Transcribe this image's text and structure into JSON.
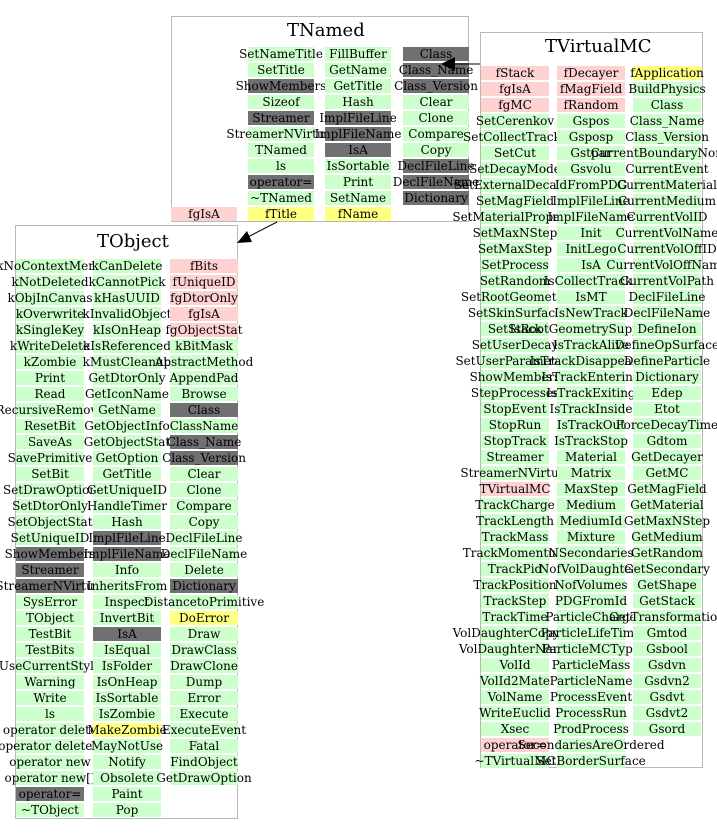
{
  "tnamed": {
    "title": "TNamed",
    "cols": [
      [
        [
          "SetNameTitle",
          "m"
        ],
        [
          "SetTitle",
          "m"
        ],
        [
          "ShowMembers",
          "d"
        ],
        [
          "Sizeof",
          "m"
        ],
        [
          "Streamer",
          "d"
        ],
        [
          "StreamerNVirtual",
          "m"
        ],
        [
          "TNamed",
          "m"
        ],
        [
          "ls",
          "m"
        ],
        [
          "operator=",
          "d"
        ],
        [
          "~TNamed",
          "m"
        ],
        [
          "fTitle",
          "y"
        ]
      ],
      [
        [
          "FillBuffer",
          "m"
        ],
        [
          "GetName",
          "m"
        ],
        [
          "GetTitle",
          "m"
        ],
        [
          "Hash",
          "m"
        ],
        [
          "ImplFileLine",
          "d"
        ],
        [
          "ImplFileName",
          "d"
        ],
        [
          "IsA",
          "d"
        ],
        [
          "IsSortable",
          "m"
        ],
        [
          "Print",
          "m"
        ],
        [
          "SetName",
          "m"
        ],
        [
          "fName",
          "y"
        ]
      ],
      [
        [
          "Class",
          "d"
        ],
        [
          "Class_Name",
          "d"
        ],
        [
          "Class_Version",
          "d"
        ],
        [
          "Clear",
          "m"
        ],
        [
          "Clone",
          "m"
        ],
        [
          "Compare",
          "m"
        ],
        [
          "Copy",
          "m"
        ],
        [
          "DeclFileLine",
          "d"
        ],
        [
          "DeclFileName",
          "d"
        ],
        [
          "Dictionary",
          "d"
        ]
      ]
    ],
    "extra": [
      [
        "fgIsA",
        "p"
      ]
    ]
  },
  "tvirtualmc": {
    "title": "TVirtualMC",
    "cols": [
      [
        [
          "fStack",
          "p"
        ],
        [
          "fgIsA",
          "p"
        ],
        [
          "fgMC",
          "p"
        ],
        [
          "SetCerenkov",
          "m"
        ],
        [
          "SetCollectTracks",
          "m"
        ],
        [
          "SetCut",
          "m"
        ],
        [
          "SetDecayMode",
          "m"
        ],
        [
          "SetExternalDecayer",
          "m"
        ],
        [
          "SetMagField",
          "m"
        ],
        [
          "SetMaterialProperty",
          "m"
        ],
        [
          "SetMaxNStep",
          "m"
        ],
        [
          "SetMaxStep",
          "m"
        ],
        [
          "SetProcess",
          "m"
        ],
        [
          "SetRandom",
          "m"
        ],
        [
          "SetRootGeometry",
          "m"
        ],
        [
          "SetSkinSurface",
          "m"
        ],
        [
          "SetStack",
          "m"
        ],
        [
          "SetUserDecay",
          "m"
        ],
        [
          "SetUserParameters",
          "m"
        ],
        [
          "ShowMembers",
          "m"
        ],
        [
          "StepProcesses",
          "m"
        ],
        [
          "StopEvent",
          "m"
        ],
        [
          "StopRun",
          "m"
        ],
        [
          "StopTrack",
          "m"
        ],
        [
          "Streamer",
          "m"
        ],
        [
          "StreamerNVirtual",
          "m"
        ],
        [
          "TVirtualMC",
          "p"
        ],
        [
          "TrackCharge",
          "m"
        ],
        [
          "TrackLength",
          "m"
        ],
        [
          "TrackMass",
          "m"
        ],
        [
          "TrackMomentum",
          "m"
        ],
        [
          "TrackPid",
          "m"
        ],
        [
          "TrackPosition",
          "m"
        ],
        [
          "TrackStep",
          "m"
        ],
        [
          "TrackTime",
          "m"
        ],
        [
          "VolDaughterCopyNo",
          "m"
        ],
        [
          "VolDaughterName",
          "m"
        ],
        [
          "VolId",
          "m"
        ],
        [
          "VolId2Mate",
          "m"
        ],
        [
          "VolName",
          "m"
        ],
        [
          "WriteEuclid",
          "m"
        ],
        [
          "Xsec",
          "m"
        ],
        [
          "operator=",
          "p"
        ],
        [
          "~TVirtualMC",
          "m"
        ]
      ],
      [
        [
          "fDecayer",
          "p"
        ],
        [
          "fMagField",
          "p"
        ],
        [
          "fRandom",
          "p"
        ],
        [
          "Gspos",
          "m"
        ],
        [
          "Gsposp",
          "m"
        ],
        [
          "Gstpar",
          "m"
        ],
        [
          "Gsvolu",
          "m"
        ],
        [
          "IdFromPDG",
          "m"
        ],
        [
          "ImplFileLine",
          "m"
        ],
        [
          "ImplFileName",
          "m"
        ],
        [
          "Init",
          "m"
        ],
        [
          "InitLego",
          "m"
        ],
        [
          "IsA",
          "m"
        ],
        [
          "IsCollectTracks",
          "m"
        ],
        [
          "IsMT",
          "m"
        ],
        [
          "IsNewTrack",
          "m"
        ],
        [
          "IsRootGeometrySupported",
          "m"
        ],
        [
          "IsTrackAlive",
          "m"
        ],
        [
          "IsTrackDisappeared",
          "m"
        ],
        [
          "IsTrackEntering",
          "m"
        ],
        [
          "IsTrackExiting",
          "m"
        ],
        [
          "IsTrackInside",
          "m"
        ],
        [
          "IsTrackOut",
          "m"
        ],
        [
          "IsTrackStop",
          "m"
        ],
        [
          "Material",
          "m"
        ],
        [
          "Matrix",
          "m"
        ],
        [
          "MaxStep",
          "m"
        ],
        [
          "Medium",
          "m"
        ],
        [
          "MediumId",
          "m"
        ],
        [
          "Mixture",
          "m"
        ],
        [
          "NSecondaries",
          "m"
        ],
        [
          "NofVolDaughters",
          "m"
        ],
        [
          "NofVolumes",
          "m"
        ],
        [
          "PDGFromId",
          "m"
        ],
        [
          "ParticleCharge",
          "m"
        ],
        [
          "ParticleLifeTime",
          "m"
        ],
        [
          "ParticleMCType",
          "m"
        ],
        [
          "ParticleMass",
          "m"
        ],
        [
          "ParticleName",
          "m"
        ],
        [
          "ProcessEvent",
          "m"
        ],
        [
          "ProcessRun",
          "m"
        ],
        [
          "ProdProcess",
          "m"
        ],
        [
          "SecondariesAreOrdered",
          "m"
        ],
        [
          "SetBorderSurface",
          "m"
        ]
      ],
      [
        [
          "fApplication",
          "y"
        ],
        [
          "BuildPhysics",
          "m"
        ],
        [
          "Class",
          "m"
        ],
        [
          "Class_Name",
          "m"
        ],
        [
          "Class_Version",
          "m"
        ],
        [
          "CurrentBoundaryNormal",
          "m"
        ],
        [
          "CurrentEvent",
          "m"
        ],
        [
          "CurrentMaterial",
          "m"
        ],
        [
          "CurrentMedium",
          "m"
        ],
        [
          "CurrentVolID",
          "m"
        ],
        [
          "CurrentVolName",
          "m"
        ],
        [
          "CurrentVolOffID",
          "m"
        ],
        [
          "CurrentVolOffName",
          "m"
        ],
        [
          "CurrentVolPath",
          "m"
        ],
        [
          "DeclFileLine",
          "m"
        ],
        [
          "DeclFileName",
          "m"
        ],
        [
          "DefineIon",
          "m"
        ],
        [
          "DefineOpSurface",
          "m"
        ],
        [
          "DefineParticle",
          "m"
        ],
        [
          "Dictionary",
          "m"
        ],
        [
          "Edep",
          "m"
        ],
        [
          "Etot",
          "m"
        ],
        [
          "ForceDecayTime",
          "m"
        ],
        [
          "Gdtom",
          "m"
        ],
        [
          "GetDecayer",
          "m"
        ],
        [
          "GetMC",
          "m"
        ],
        [
          "GetMagField",
          "m"
        ],
        [
          "GetMaterial",
          "m"
        ],
        [
          "GetMaxNStep",
          "m"
        ],
        [
          "GetMedium",
          "m"
        ],
        [
          "GetRandom",
          "m"
        ],
        [
          "GetSecondary",
          "m"
        ],
        [
          "GetShape",
          "m"
        ],
        [
          "GetStack",
          "m"
        ],
        [
          "GetTransformation",
          "m"
        ],
        [
          "Gmtod",
          "m"
        ],
        [
          "Gsbool",
          "m"
        ],
        [
          "Gsdvn",
          "m"
        ],
        [
          "Gsdvn2",
          "m"
        ],
        [
          "Gsdvt",
          "m"
        ],
        [
          "Gsdvt2",
          "m"
        ],
        [
          "Gsord",
          "m"
        ]
      ]
    ]
  },
  "tobject": {
    "title": "TObject",
    "cols": [
      [
        [
          "kNoContextMenu",
          "m"
        ],
        [
          "kNotDeleted",
          "m"
        ],
        [
          "kObjInCanvas",
          "m"
        ],
        [
          "kOverwrite",
          "m"
        ],
        [
          "kSingleKey",
          "m"
        ],
        [
          "kWriteDelete",
          "m"
        ],
        [
          "kZombie",
          "m"
        ],
        [
          "Print",
          "m"
        ],
        [
          "Read",
          "m"
        ],
        [
          "RecursiveRemove",
          "m"
        ],
        [
          "ResetBit",
          "m"
        ],
        [
          "SaveAs",
          "m"
        ],
        [
          "SavePrimitive",
          "m"
        ],
        [
          "SetBit",
          "m"
        ],
        [
          "SetDrawOption",
          "m"
        ],
        [
          "SetDtorOnly",
          "m"
        ],
        [
          "SetObjectStat",
          "m"
        ],
        [
          "SetUniqueID",
          "m"
        ],
        [
          "ShowMembers",
          "d"
        ],
        [
          "Streamer",
          "d"
        ],
        [
          "StreamerNVirtual",
          "d"
        ],
        [
          "SysError",
          "m"
        ],
        [
          "TObject",
          "m"
        ],
        [
          "TestBit",
          "m"
        ],
        [
          "TestBits",
          "m"
        ],
        [
          "UseCurrentStyle",
          "m"
        ],
        [
          "Warning",
          "m"
        ],
        [
          "Write",
          "m"
        ],
        [
          "ls",
          "m"
        ],
        [
          "operator delete",
          "m"
        ],
        [
          "operator delete[]",
          "m"
        ],
        [
          "operator new",
          "m"
        ],
        [
          "operator new[]",
          "m"
        ],
        [
          "operator=",
          "d"
        ],
        [
          "~TObject",
          "m"
        ]
      ],
      [
        [
          "kCanDelete",
          "m"
        ],
        [
          "kCannotPick",
          "m"
        ],
        [
          "kHasUUID",
          "m"
        ],
        [
          "kInvalidObject",
          "m"
        ],
        [
          "kIsOnHeap",
          "m"
        ],
        [
          "kIsReferenced",
          "m"
        ],
        [
          "kMustCleanup",
          "m"
        ],
        [
          "GetDtorOnly",
          "m"
        ],
        [
          "GetIconName",
          "m"
        ],
        [
          "GetName",
          "m"
        ],
        [
          "GetObjectInfo",
          "m"
        ],
        [
          "GetObjectStat",
          "m"
        ],
        [
          "GetOption",
          "m"
        ],
        [
          "GetTitle",
          "m"
        ],
        [
          "GetUniqueID",
          "m"
        ],
        [
          "HandleTimer",
          "m"
        ],
        [
          "Hash",
          "m"
        ],
        [
          "ImplFileLine",
          "d"
        ],
        [
          "ImplFileName",
          "d"
        ],
        [
          "Info",
          "m"
        ],
        [
          "InheritsFrom",
          "m"
        ],
        [
          "Inspect",
          "m"
        ],
        [
          "InvertBit",
          "m"
        ],
        [
          "IsA",
          "d"
        ],
        [
          "IsEqual",
          "m"
        ],
        [
          "IsFolder",
          "m"
        ],
        [
          "IsOnHeap",
          "m"
        ],
        [
          "IsSortable",
          "m"
        ],
        [
          "IsZombie",
          "m"
        ],
        [
          "MakeZombie",
          "y"
        ],
        [
          "MayNotUse",
          "m"
        ],
        [
          "Notify",
          "m"
        ],
        [
          "Obsolete",
          "m"
        ],
        [
          "Paint",
          "m"
        ],
        [
          "Pop",
          "m"
        ]
      ],
      [
        [
          "fBits",
          "p"
        ],
        [
          "fUniqueID",
          "p"
        ],
        [
          "fgDtorOnly",
          "p"
        ],
        [
          "fgIsA",
          "p"
        ],
        [
          "fgObjectStat",
          "p"
        ],
        [
          "kBitMask",
          "m"
        ],
        [
          "AbstractMethod",
          "m"
        ],
        [
          "AppendPad",
          "m"
        ],
        [
          "Browse",
          "m"
        ],
        [
          "Class",
          "d"
        ],
        [
          "ClassName",
          "m"
        ],
        [
          "Class_Name",
          "d"
        ],
        [
          "Class_Version",
          "d"
        ],
        [
          "Clear",
          "m"
        ],
        [
          "Clone",
          "m"
        ],
        [
          "Compare",
          "m"
        ],
        [
          "Copy",
          "m"
        ],
        [
          "DeclFileLine",
          "m"
        ],
        [
          "DeclFileName",
          "m"
        ],
        [
          "Delete",
          "m"
        ],
        [
          "Dictionary",
          "d"
        ],
        [
          "DistancetoPrimitive",
          "m"
        ],
        [
          "DoError",
          "y"
        ],
        [
          "Draw",
          "m"
        ],
        [
          "DrawClass",
          "m"
        ],
        [
          "DrawClone",
          "m"
        ],
        [
          "Dump",
          "m"
        ],
        [
          "Error",
          "m"
        ],
        [
          "Execute",
          "m"
        ],
        [
          "ExecuteEvent",
          "m"
        ],
        [
          "Fatal",
          "m"
        ],
        [
          "FindObject",
          "m"
        ],
        [
          "GetDrawOption",
          "m"
        ]
      ]
    ]
  }
}
